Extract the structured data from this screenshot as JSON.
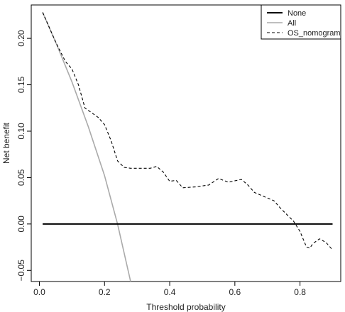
{
  "chart_data": {
    "type": "line",
    "title": "",
    "xlabel": "Threshold probability",
    "ylabel": "Net benefit",
    "xlim": [
      -0.025,
      0.925
    ],
    "ylim": [
      -0.062,
      0.236
    ],
    "xticks": [
      {
        "v": 0.0,
        "label": "0.0"
      },
      {
        "v": 0.2,
        "label": "0.2"
      },
      {
        "v": 0.4,
        "label": "0.4"
      },
      {
        "v": 0.6,
        "label": "0.6"
      },
      {
        "v": 0.8,
        "label": "0.8"
      }
    ],
    "yticks": [
      {
        "v": -0.05,
        "label": "−0.05"
      },
      {
        "v": 0.0,
        "label": "0.00"
      },
      {
        "v": 0.05,
        "label": "0.05"
      },
      {
        "v": 0.1,
        "label": "0.10"
      },
      {
        "v": 0.15,
        "label": "0.15"
      },
      {
        "v": 0.2,
        "label": "0.20"
      }
    ],
    "legend_position": "top-right",
    "grid": false,
    "series": [
      {
        "name": "None",
        "color": "#000000",
        "dash": "solid",
        "width": 2,
        "x": [
          0.01,
          0.9
        ],
        "y": [
          0.0,
          0.0
        ]
      },
      {
        "name": "All",
        "color": "#aaaaaa",
        "dash": "solid",
        "width": 1.6,
        "x": [
          0.01,
          0.05,
          0.1,
          0.15,
          0.2,
          0.24,
          0.28
        ],
        "y": [
          0.228,
          0.196,
          0.153,
          0.105,
          0.052,
          0.0,
          -0.062
        ]
      },
      {
        "name": "OS_nomogram",
        "color": "#000000",
        "dash": "4,3",
        "width": 1.1,
        "x": [
          0.01,
          0.05,
          0.08,
          0.1,
          0.12,
          0.14,
          0.18,
          0.2,
          0.22,
          0.24,
          0.26,
          0.28,
          0.3,
          0.34,
          0.36,
          0.38,
          0.4,
          0.42,
          0.44,
          0.48,
          0.52,
          0.55,
          0.58,
          0.62,
          0.64,
          0.66,
          0.7,
          0.72,
          0.74,
          0.76,
          0.78,
          0.8,
          0.82,
          0.83,
          0.84,
          0.86,
          0.88,
          0.9
        ],
        "y": [
          0.228,
          0.196,
          0.175,
          0.167,
          0.15,
          0.125,
          0.115,
          0.107,
          0.09,
          0.068,
          0.061,
          0.06,
          0.06,
          0.06,
          0.062,
          0.056,
          0.046,
          0.047,
          0.039,
          0.04,
          0.042,
          0.049,
          0.045,
          0.048,
          0.042,
          0.034,
          0.028,
          0.025,
          0.017,
          0.01,
          0.003,
          -0.008,
          -0.025,
          -0.026,
          -0.021,
          -0.016,
          -0.02,
          -0.028
        ]
      }
    ]
  }
}
